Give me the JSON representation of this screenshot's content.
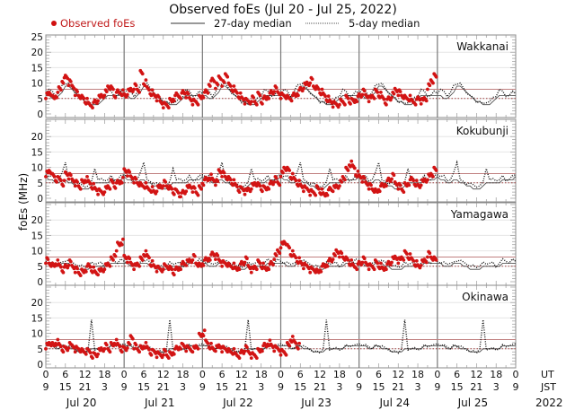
{
  "chart_data": {
    "type": "scatter",
    "title": "Observed foEs (Jul 20 - Jul 25, 2022)",
    "ylabel": "foEs (MHz)",
    "ylim": [
      0,
      25
    ],
    "yticks": [
      0,
      5,
      10,
      15,
      20,
      25
    ],
    "legend": {
      "placement": "top",
      "entries": [
        {
          "label": "Observed foEs",
          "style": "red-dot",
          "color": "#d01010"
        },
        {
          "label": "27-day median",
          "style": "solid-line",
          "color": "#222222"
        },
        {
          "label": "5-day median",
          "style": "dotted-line",
          "color": "#222222"
        }
      ]
    },
    "reference_lines": {
      "upper": 8,
      "lower": 5,
      "color": "#b04040"
    },
    "x_axis": {
      "ut_ticks": [
        "0",
        "6",
        "12",
        "18",
        "0",
        "6",
        "12",
        "18",
        "0",
        "6",
        "12",
        "18",
        "0",
        "6",
        "12",
        "18",
        "0",
        "6",
        "12",
        "18",
        "0",
        "6",
        "12",
        "18",
        "0"
      ],
      "jst_ticks": [
        "9",
        "15",
        "21",
        "3",
        "9",
        "15",
        "21",
        "3",
        "9",
        "15",
        "21",
        "3",
        "9",
        "15",
        "21",
        "3",
        "9",
        "15",
        "21",
        "3",
        "9",
        "15",
        "21",
        "3",
        "9"
      ],
      "ut_label": "UT",
      "jst_label": "JST",
      "days": [
        "Jul 20",
        "Jul 21",
        "Jul 22",
        "Jul 23",
        "Jul 24",
        "Jul 25"
      ],
      "year": "2022"
    },
    "panels": [
      {
        "station": "Wakkanai",
        "observed_until_hour": 120,
        "observed": [
          6,
          7,
          5,
          6,
          8,
          11,
          12,
          10,
          9,
          7,
          6,
          5,
          4,
          3,
          3,
          4,
          5,
          6,
          7,
          9,
          8,
          6,
          7,
          7,
          6,
          7,
          8,
          9,
          8,
          13,
          10,
          8,
          7,
          6,
          5,
          4,
          3,
          3,
          4,
          5,
          6,
          6,
          7,
          6,
          5,
          4,
          4,
          5,
          6,
          7,
          10,
          11,
          9,
          12,
          10,
          13,
          9,
          8,
          7,
          6,
          5,
          4,
          4,
          5,
          4,
          6,
          4,
          5,
          6,
          7,
          8,
          7,
          6,
          6,
          5,
          5,
          6,
          7,
          8,
          9,
          10,
          11,
          9,
          8,
          7,
          6,
          5,
          4,
          3,
          3,
          4,
          4,
          5,
          4,
          4,
          5,
          6,
          7,
          6,
          5,
          6,
          7,
          6,
          5,
          4,
          5,
          6,
          8,
          7,
          6,
          5,
          5,
          4,
          4,
          5,
          4,
          5,
          9,
          11,
          12
        ]
      },
      {
        "station": "Kokubunji",
        "observed_until_hour": 120,
        "observed": [
          8,
          9,
          7,
          6,
          6,
          5,
          8,
          7,
          6,
          5,
          4,
          5,
          6,
          5,
          4,
          3,
          2,
          2,
          3,
          4,
          5,
          4,
          5,
          6,
          9,
          8,
          7,
          6,
          5,
          4,
          4,
          3,
          3,
          2,
          3,
          4,
          5,
          4,
          3,
          2,
          2,
          1,
          2,
          3,
          4,
          3,
          2,
          3,
          5,
          6,
          7,
          6,
          5,
          9,
          8,
          7,
          6,
          5,
          4,
          3,
          3,
          2,
          3,
          4,
          5,
          4,
          3,
          3,
          4,
          5,
          6,
          5,
          8,
          10,
          9,
          7,
          6,
          5,
          4,
          3,
          3,
          2,
          2,
          3,
          2,
          1,
          2,
          3,
          3,
          4,
          5,
          7,
          9,
          11,
          10,
          8,
          7,
          6,
          5,
          4,
          3,
          2,
          3,
          4,
          5,
          6,
          7,
          5,
          4,
          3,
          4,
          5,
          6,
          5,
          4,
          5,
          6,
          7,
          8,
          9
        ]
      },
      {
        "station": "Yamagawa",
        "observed_until_hour": 120,
        "observed": [
          7,
          6,
          5,
          6,
          5,
          4,
          5,
          6,
          5,
          4,
          3,
          3,
          4,
          5,
          4,
          3,
          3,
          4,
          5,
          6,
          7,
          9,
          12,
          13,
          8,
          7,
          6,
          5,
          6,
          7,
          9,
          8,
          6,
          5,
          4,
          4,
          5,
          5,
          4,
          3,
          4,
          5,
          6,
          6,
          7,
          8,
          6,
          5,
          6,
          7,
          8,
          9,
          8,
          7,
          6,
          6,
          5,
          5,
          4,
          5,
          6,
          7,
          5,
          4,
          5,
          6,
          5,
          4,
          5,
          6,
          8,
          10,
          12,
          13,
          11,
          9,
          8,
          7,
          6,
          5,
          5,
          4,
          4,
          3,
          4,
          5,
          6,
          7,
          8,
          10,
          9,
          8,
          7,
          6,
          5,
          5,
          6,
          7,
          6,
          5,
          5,
          6,
          5,
          4,
          5,
          6,
          7,
          8,
          7,
          8,
          9,
          8,
          7,
          6,
          5,
          6,
          7,
          9,
          8,
          7
        ]
      },
      {
        "station": "Okinawa",
        "observed_until_hour": 78,
        "observed": [
          6,
          7,
          6,
          7,
          6,
          5,
          5,
          6,
          6,
          5,
          5,
          4,
          4,
          4,
          3,
          3,
          4,
          5,
          6,
          5,
          6,
          7,
          6,
          5,
          5,
          6,
          9,
          6,
          5,
          5,
          6,
          5,
          4,
          4,
          3,
          3,
          4,
          3,
          3,
          4,
          5,
          6,
          6,
          5,
          5,
          5,
          6,
          9,
          10,
          7,
          6,
          5,
          5,
          6,
          5,
          5,
          4,
          4,
          3,
          3,
          4,
          5,
          4,
          3,
          3,
          4,
          5,
          6,
          7,
          6,
          5,
          5,
          4,
          4,
          6,
          8,
          7,
          6
        ]
      }
    ],
    "median_27day": {
      "Wakkanai": [
        6,
        6,
        5,
        5,
        6,
        7,
        9,
        9,
        8,
        7,
        6,
        5,
        4,
        4,
        3,
        3,
        3,
        4,
        5,
        6,
        6,
        6,
        6,
        6
      ],
      "Kokubunji": [
        7,
        6,
        6,
        5,
        5,
        6,
        6,
        5,
        5,
        4,
        4,
        3,
        3,
        3,
        4,
        5,
        5,
        5,
        5,
        5,
        6,
        6,
        6,
        6
      ],
      "Yamagawa": [
        6,
        6,
        5,
        5,
        5,
        6,
        6,
        6,
        5,
        5,
        4,
        4,
        4,
        4,
        5,
        5,
        5,
        5,
        5,
        5,
        6,
        6,
        6,
        6
      ],
      "Okinawa": [
        6,
        6,
        6,
        5,
        5,
        6,
        6,
        5,
        5,
        5,
        4,
        4,
        4,
        4,
        5,
        5,
        5,
        5,
        5,
        5,
        6,
        6,
        6,
        6
      ]
    },
    "median_5day": {
      "Wakkanai": [
        7,
        8,
        7,
        6,
        7,
        9,
        10,
        10,
        8,
        7,
        6,
        5,
        4,
        4,
        3,
        4,
        4,
        5,
        6,
        8,
        7,
        6,
        6,
        7
      ],
      "Kokubunji": [
        8,
        7,
        7,
        6,
        6,
        8,
        12,
        6,
        5,
        5,
        5,
        4,
        4,
        4,
        5,
        10,
        6,
        6,
        6,
        6,
        7,
        6,
        6,
        7
      ],
      "Yamagawa": [
        7,
        6,
        6,
        6,
        6,
        6,
        7,
        7,
        6,
        6,
        5,
        5,
        5,
        5,
        6,
        6,
        6,
        6,
        5,
        6,
        7,
        7,
        6,
        7
      ],
      "Okinawa": [
        7,
        6,
        6,
        6,
        5,
        6,
        6,
        6,
        5,
        5,
        4,
        4,
        4,
        5,
        14,
        5,
        5,
        5,
        5,
        5,
        6,
        6,
        6,
        6
      ]
    }
  }
}
